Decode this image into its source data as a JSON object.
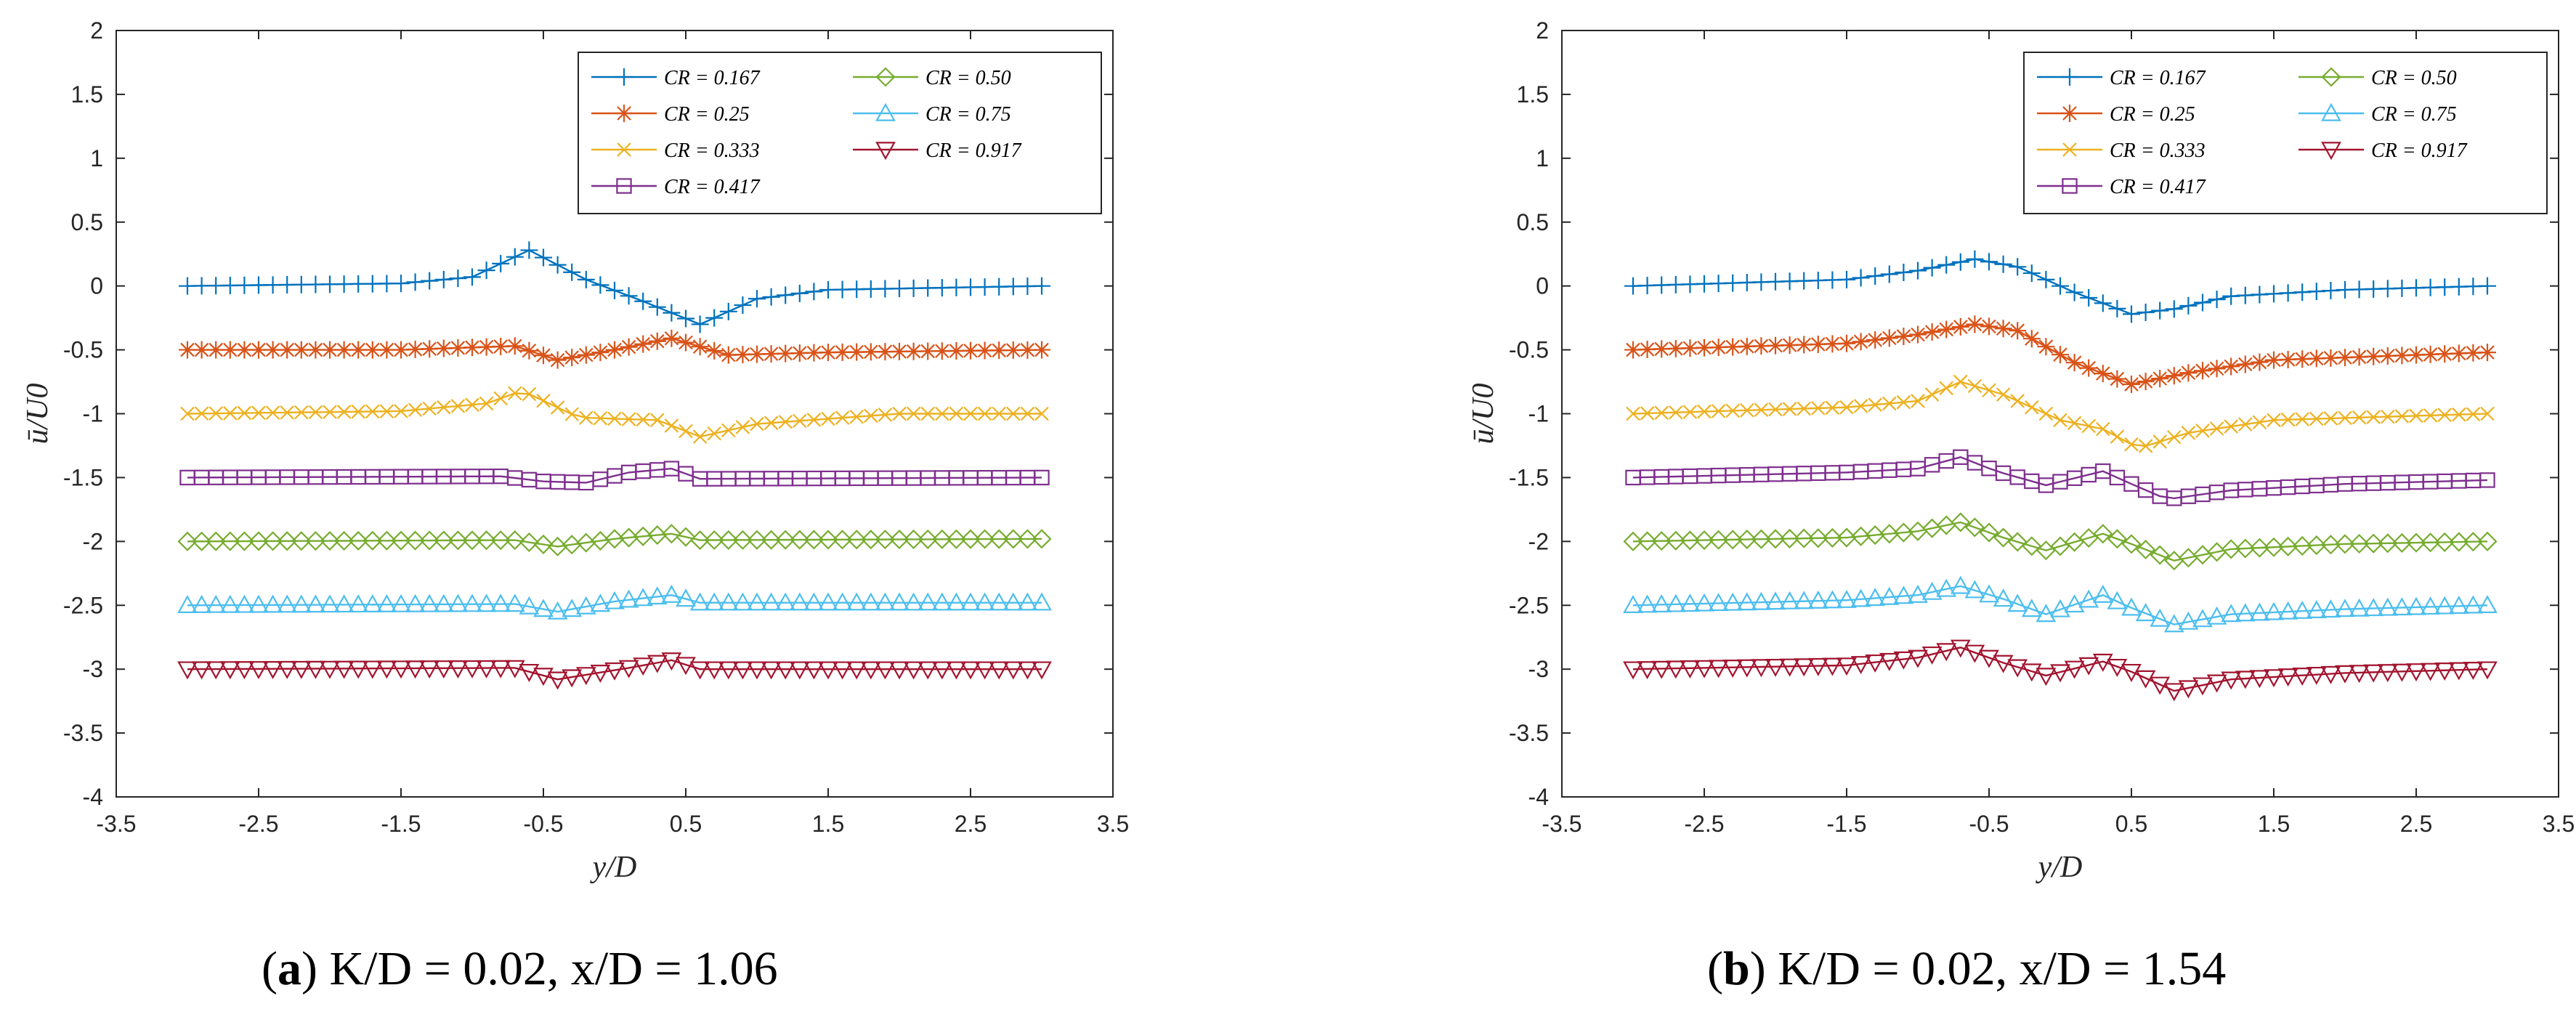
{
  "chart_data": [
    {
      "type": "line",
      "caption": {
        "letter": "a",
        "text": " K/D = 0.02, x/D = 1.06"
      },
      "xlabel": "y/D",
      "ylabel": "ū/U0",
      "xlim": [
        -3.5,
        3.5
      ],
      "ylim": [
        -4,
        2
      ],
      "xticks": [
        "-3.5",
        "-2.5",
        "-1.5",
        "-0.5",
        "0.5",
        "1.5",
        "2.5",
        "3.5"
      ],
      "yticks": [
        "2",
        "1.5",
        "1",
        "0.5",
        "0",
        "-0.5",
        "-1",
        "-1.5",
        "-2",
        "-2.5",
        "-3",
        "-3.5",
        "-4"
      ],
      "legend_position": "top-right",
      "series": [
        {
          "name": "CR = 0.167",
          "color": "#0072BD",
          "marker": "plus",
          "points": [
            [
              -3,
              0
            ],
            [
              -1.5,
              0.02
            ],
            [
              -1,
              0.07
            ],
            [
              -0.6,
              0.28
            ],
            [
              -0.2,
              0.05
            ],
            [
              0.2,
              -0.12
            ],
            [
              0.6,
              -0.3
            ],
            [
              1.0,
              -0.1
            ],
            [
              1.5,
              -0.03
            ],
            [
              3,
              0
            ]
          ]
        },
        {
          "name": "CR = 0.25",
          "color": "#D95319",
          "marker": "star",
          "points": [
            [
              -3,
              -0.5
            ],
            [
              -1.5,
              -0.5
            ],
            [
              -0.7,
              -0.47
            ],
            [
              -0.4,
              -0.58
            ],
            [
              0,
              -0.5
            ],
            [
              0.4,
              -0.41
            ],
            [
              0.8,
              -0.54
            ],
            [
              1.5,
              -0.52
            ],
            [
              3,
              -0.5
            ]
          ]
        },
        {
          "name": "CR = 0.333",
          "color": "#EDB120",
          "marker": "x",
          "points": [
            [
              -3,
              -1
            ],
            [
              -1.5,
              -0.98
            ],
            [
              -0.9,
              -0.92
            ],
            [
              -0.65,
              -0.82
            ],
            [
              -0.25,
              -1.03
            ],
            [
              0.3,
              -1.05
            ],
            [
              0.6,
              -1.18
            ],
            [
              1.0,
              -1.08
            ],
            [
              2,
              -1.0
            ],
            [
              3,
              -1.0
            ]
          ]
        },
        {
          "name": "CR = 0.417",
          "color": "#7E2F8E",
          "marker": "square",
          "points": [
            [
              -3,
              -1.5
            ],
            [
              -0.8,
              -1.49
            ],
            [
              -0.5,
              -1.53
            ],
            [
              -0.2,
              -1.54
            ],
            [
              0.1,
              -1.46
            ],
            [
              0.4,
              -1.43
            ],
            [
              0.6,
              -1.51
            ],
            [
              3,
              -1.5
            ]
          ]
        },
        {
          "name": "CR = 0.50",
          "color": "#77AC30",
          "marker": "diamond",
          "points": [
            [
              -3,
              -2
            ],
            [
              -0.7,
              -1.99
            ],
            [
              -0.4,
              -2.04
            ],
            [
              0,
              -1.98
            ],
            [
              0.4,
              -1.94
            ],
            [
              0.6,
              -1.99
            ],
            [
              3,
              -1.98
            ]
          ]
        },
        {
          "name": "CR = 0.75",
          "color": "#4DBEEE",
          "marker": "triangle-up",
          "points": [
            [
              -3,
              -2.5
            ],
            [
              -0.7,
              -2.49
            ],
            [
              -0.4,
              -2.55
            ],
            [
              0,
              -2.47
            ],
            [
              0.4,
              -2.42
            ],
            [
              0.6,
              -2.48
            ],
            [
              3,
              -2.48
            ]
          ]
        },
        {
          "name": "CR = 0.917",
          "color": "#A2142F",
          "marker": "triangle-down",
          "points": [
            [
              -3,
              -3
            ],
            [
              -0.7,
              -2.99
            ],
            [
              -0.4,
              -3.08
            ],
            [
              0.1,
              -2.99
            ],
            [
              0.4,
              -2.93
            ],
            [
              0.6,
              -3.0
            ],
            [
              3,
              -3.0
            ]
          ]
        }
      ]
    },
    {
      "type": "line",
      "caption": {
        "letter": "b",
        "text": " K/D = 0.02, x/D = 1.54"
      },
      "xlabel": "y/D",
      "ylabel": "ū/U0",
      "xlim": [
        -3.5,
        3.5
      ],
      "ylim": [
        -4,
        2
      ],
      "xticks": [
        "-3.5",
        "-2.5",
        "-1.5",
        "-0.5",
        "0.5",
        "1.5",
        "2.5",
        "3.5"
      ],
      "yticks": [
        "2",
        "1.5",
        "1",
        "0.5",
        "0",
        "-0.5",
        "-1",
        "-1.5",
        "-2",
        "-2.5",
        "-3",
        "-3.5",
        "-4"
      ],
      "legend_position": "top-right",
      "series": [
        {
          "name": "CR = 0.167",
          "color": "#0072BD",
          "marker": "plus",
          "points": [
            [
              -3,
              0
            ],
            [
              -1.5,
              0.05
            ],
            [
              -1,
              0.12
            ],
            [
              -0.6,
              0.21
            ],
            [
              -0.3,
              0.15
            ],
            [
              0.1,
              -0.05
            ],
            [
              0.5,
              -0.22
            ],
            [
              0.8,
              -0.18
            ],
            [
              1.2,
              -0.08
            ],
            [
              2,
              -0.03
            ],
            [
              3,
              0
            ]
          ]
        },
        {
          "name": "CR = 0.25",
          "color": "#D95319",
          "marker": "star",
          "points": [
            [
              -3,
              -0.5
            ],
            [
              -1.5,
              -0.45
            ],
            [
              -1,
              -0.38
            ],
            [
              -0.6,
              -0.3
            ],
            [
              -0.3,
              -0.35
            ],
            [
              0.1,
              -0.6
            ],
            [
              0.5,
              -0.77
            ],
            [
              0.9,
              -0.68
            ],
            [
              1.5,
              -0.58
            ],
            [
              3,
              -0.52
            ]
          ]
        },
        {
          "name": "CR = 0.333",
          "color": "#EDB120",
          "marker": "x",
          "points": [
            [
              -3,
              -1
            ],
            [
              -1.5,
              -0.95
            ],
            [
              -1,
              -0.9
            ],
            [
              -0.7,
              -0.75
            ],
            [
              -0.4,
              -0.85
            ],
            [
              0,
              -1.05
            ],
            [
              0.3,
              -1.12
            ],
            [
              0.55,
              -1.27
            ],
            [
              0.9,
              -1.15
            ],
            [
              1.5,
              -1.05
            ],
            [
              3,
              -1.0
            ]
          ]
        },
        {
          "name": "CR = 0.417",
          "color": "#7E2F8E",
          "marker": "square",
          "points": [
            [
              -3,
              -1.5
            ],
            [
              -1.5,
              -1.46
            ],
            [
              -1.0,
              -1.43
            ],
            [
              -0.7,
              -1.34
            ],
            [
              -0.45,
              -1.45
            ],
            [
              -0.1,
              -1.56
            ],
            [
              0.3,
              -1.45
            ],
            [
              0.5,
              -1.55
            ],
            [
              0.75,
              -1.67
            ],
            [
              1.2,
              -1.6
            ],
            [
              2,
              -1.55
            ],
            [
              3,
              -1.52
            ]
          ]
        },
        {
          "name": "CR = 0.50",
          "color": "#77AC30",
          "marker": "diamond",
          "points": [
            [
              -3,
              -2
            ],
            [
              -1.5,
              -1.97
            ],
            [
              -1,
              -1.92
            ],
            [
              -0.7,
              -1.85
            ],
            [
              -0.4,
              -1.97
            ],
            [
              -0.1,
              -2.07
            ],
            [
              0.3,
              -1.94
            ],
            [
              0.5,
              -2.02
            ],
            [
              0.8,
              -2.15
            ],
            [
              1.2,
              -2.06
            ],
            [
              2,
              -2.02
            ],
            [
              3,
              -2.0
            ]
          ]
        },
        {
          "name": "CR = 0.75",
          "color": "#4DBEEE",
          "marker": "triangle-up",
          "points": [
            [
              -3,
              -2.5
            ],
            [
              -1.5,
              -2.46
            ],
            [
              -1,
              -2.42
            ],
            [
              -0.7,
              -2.35
            ],
            [
              -0.4,
              -2.45
            ],
            [
              -0.1,
              -2.57
            ],
            [
              0.3,
              -2.42
            ],
            [
              0.5,
              -2.52
            ],
            [
              0.8,
              -2.65
            ],
            [
              1.2,
              -2.57
            ],
            [
              2,
              -2.53
            ],
            [
              3,
              -2.5
            ]
          ]
        },
        {
          "name": "CR = 0.917",
          "color": "#A2142F",
          "marker": "triangle-down",
          "points": [
            [
              -3,
              -3
            ],
            [
              -1.5,
              -2.97
            ],
            [
              -1,
              -2.91
            ],
            [
              -0.7,
              -2.83
            ],
            [
              -0.4,
              -2.95
            ],
            [
              -0.1,
              -3.05
            ],
            [
              0.3,
              -2.94
            ],
            [
              0.5,
              -3.02
            ],
            [
              0.8,
              -3.17
            ],
            [
              1.2,
              -3.08
            ],
            [
              2,
              -3.03
            ],
            [
              3,
              -3.0
            ]
          ]
        }
      ]
    }
  ]
}
